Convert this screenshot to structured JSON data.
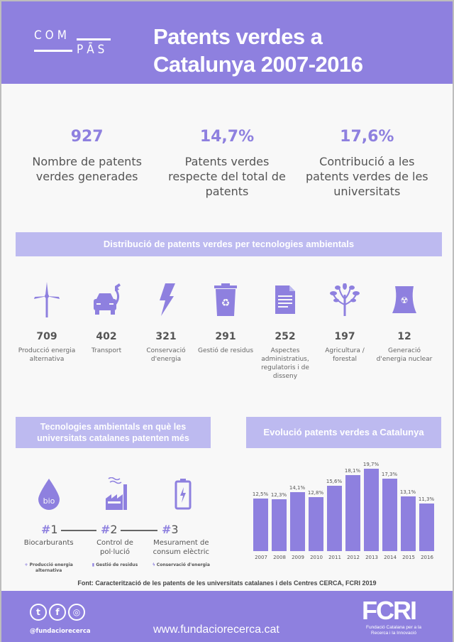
{
  "header": {
    "logo_top": "COM",
    "logo_bottom": "PĀS",
    "title_line1": "Patents verdes a",
    "title_line2": "Catalunya 2007-2016"
  },
  "stats": [
    {
      "value": "927",
      "label": "Nombre de patents verdes generades"
    },
    {
      "value": "14,7%",
      "label": "Patents verdes respecte del total de patents"
    },
    {
      "value": "17,6%",
      "label": "Contribució a les patents verdes de les universitats"
    }
  ],
  "distribution": {
    "title": "Distribució de patents verdes per tecnologies ambientals",
    "items": [
      {
        "icon": "wind-turbine-icon",
        "value": "709",
        "label": "Producció energia alternativa"
      },
      {
        "icon": "electric-car-icon",
        "value": "402",
        "label": "Transport"
      },
      {
        "icon": "lightning-icon",
        "value": "321",
        "label": "Conservació d'energia"
      },
      {
        "icon": "recycle-bin-icon",
        "value": "291",
        "label": "Gestió de residus"
      },
      {
        "icon": "document-icon",
        "value": "252",
        "label": "Aspectes administratius, regulatoris i de disseny"
      },
      {
        "icon": "plant-icon",
        "value": "197",
        "label": "Agricultura / forestal"
      },
      {
        "icon": "nuclear-plant-icon",
        "value": "12",
        "label": "Generació d'energia nuclear"
      }
    ]
  },
  "universities": {
    "title": "Tecnologies ambientals en què les universitats catalanes patenten més",
    "ranks": [
      {
        "rank": "#",
        "num": "1",
        "icon": "bio-drop-icon",
        "label": "Biocarburants",
        "category": "Producció energia alternativa",
        "cat_icon": "+"
      },
      {
        "rank": "#",
        "num": "2",
        "icon": "factory-icon",
        "label": "Control de pol·lució",
        "category": "Gestió de residus",
        "cat_icon": "▮"
      },
      {
        "rank": "#",
        "num": "3",
        "icon": "battery-icon",
        "label": "Mesurament de consum elèctric",
        "category": "Conservació d'energia",
        "cat_icon": "ϟ"
      }
    ],
    "bio_text": "bio"
  },
  "evolution": {
    "title": "Evolució patents verdes a Catalunya"
  },
  "chart_data": {
    "type": "bar",
    "title": "Evolució patents verdes a Catalunya",
    "categories": [
      "2007",
      "2008",
      "2009",
      "2010",
      "2011",
      "2012",
      "2013",
      "2014",
      "2015",
      "2016"
    ],
    "values": [
      12.5,
      12.3,
      14.1,
      12.8,
      15.6,
      18.1,
      19.7,
      17.3,
      13.1,
      11.3
    ],
    "labels": [
      "12,5%",
      "12,3%",
      "14,1%",
      "12,8%",
      "15,6%",
      "18,1%",
      "19,7%",
      "17,3%",
      "13,1%",
      "11,3%"
    ],
    "xlabel": "",
    "ylabel": "",
    "grid": false
  },
  "source": "Font: Caracterització de les patents de les universitats catalanes i dels Centres CERCA, FCRI 2019",
  "footer": {
    "handle": "@fundaciorecerca",
    "website": "www.fundaciorecerca.cat",
    "org_logo": "FCRI",
    "org_name": "Fundació Catalana per a la Recerca i la Innovació",
    "social": [
      "twitter-icon",
      "facebook-icon",
      "instagram-icon"
    ]
  },
  "colors": {
    "accent": "#8e80df",
    "band": "#bdbaf0",
    "text": "#555555"
  }
}
